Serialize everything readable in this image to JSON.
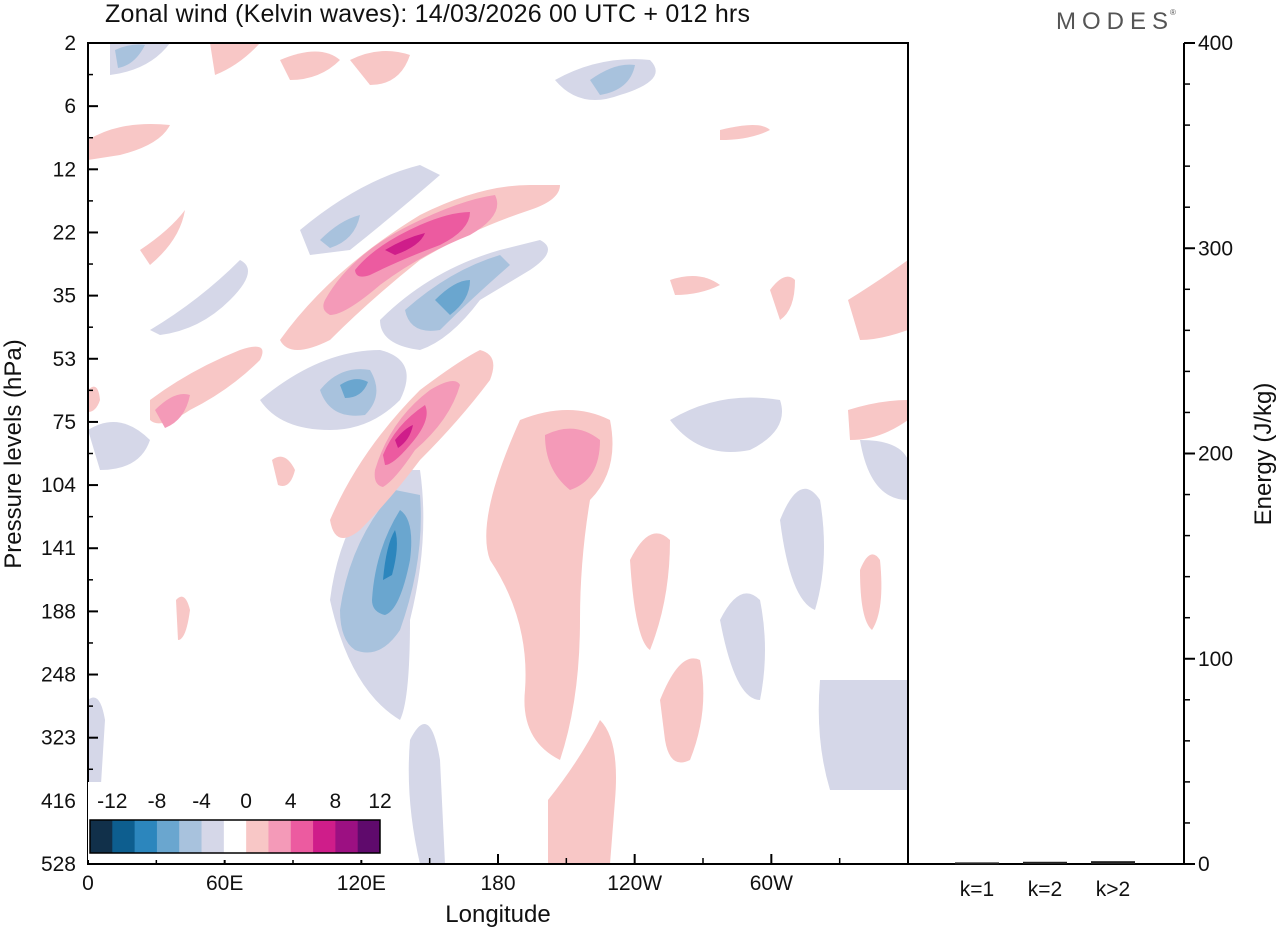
{
  "title": "Zonal wind (Kelvin waves):  14/03/2026  00 UTC  + 012 hrs",
  "brand": "MODES",
  "brand_mark": "®",
  "chart_data": [
    {
      "type": "heatmap",
      "title": "Zonal wind (Kelvin waves):  14/03/2026  00 UTC  + 012 hrs",
      "xlabel": "Longitude",
      "ylabel": "Pressure levels (hPa)",
      "x_ticks": [
        "0",
        "60E",
        "120E",
        "180",
        "120W",
        "60W"
      ],
      "x_tick_values": [
        0,
        60,
        120,
        180,
        240,
        300
      ],
      "xlim": [
        0,
        360
      ],
      "y_ticks": [
        "2",
        "6",
        "12",
        "22",
        "35",
        "53",
        "75",
        "104",
        "141",
        "188",
        "248",
        "323",
        "416",
        "528"
      ],
      "colorbar": {
        "labels": [
          "-12",
          "-8",
          "-4",
          "0",
          "4",
          "8",
          "12"
        ],
        "levels": [
          -14,
          -12,
          -10,
          -8,
          -6,
          -4,
          -2,
          2,
          4,
          6,
          8,
          10,
          12,
          14
        ],
        "colors": [
          "#11304a",
          "#0d5e8f",
          "#2c86bd",
          "#6aa6cf",
          "#a8c2dd",
          "#d5d7e8",
          "#ffffff",
          "#f8c7c6",
          "#f49ab8",
          "#ec5ba0",
          "#cf1d8a",
          "#9c1082",
          "#5f0a6c"
        ]
      },
      "features": [
        {
          "name": "upper positive anomaly band",
          "sign": "positive",
          "lon_range": [
            120,
            180
          ],
          "level_range": [
            "35",
            "22"
          ],
          "max_value": 12
        },
        {
          "name": "upper negative anomaly band",
          "sign": "negative",
          "lon_range": [
            140,
            190
          ],
          "level_range": [
            "53",
            "22"
          ],
          "max_value": -8
        },
        {
          "name": "mid positive anomaly",
          "sign": "positive",
          "lon_range": [
            125,
            165
          ],
          "level_range": [
            "104",
            "53"
          ],
          "max_value": 12
        },
        {
          "name": "lower negative anomaly",
          "sign": "negative",
          "lon_range": [
            110,
            140
          ],
          "level_range": [
            "248",
            "104"
          ],
          "max_value": -12
        },
        {
          "name": "positive anomaly near date line",
          "sign": "positive",
          "lon_range": [
            195,
            225
          ],
          "level_range": [
            "104",
            "75"
          ],
          "max_value": 6
        }
      ]
    },
    {
      "type": "bar",
      "title": "",
      "xlabel": "",
      "ylabel": "Energy (J/kg)",
      "categories": [
        "k=1",
        "k=2",
        "k>2"
      ],
      "values": [
        0.3,
        0.6,
        0.9
      ],
      "ylim": [
        0,
        400
      ],
      "y_ticks": [
        "0",
        "100",
        "200",
        "300",
        "400"
      ]
    }
  ]
}
